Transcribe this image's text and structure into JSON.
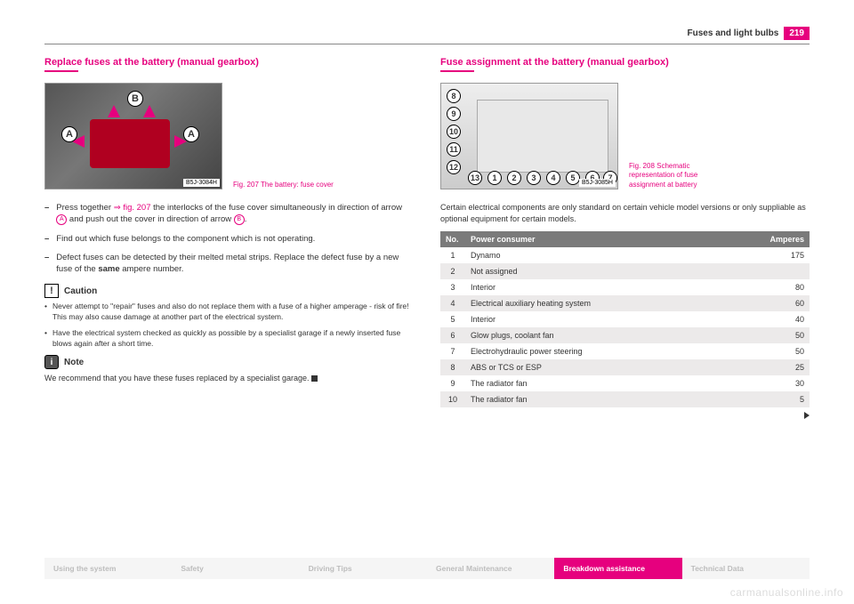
{
  "header": {
    "section_title": "Fuses and light bulbs",
    "page_number": "219"
  },
  "left": {
    "title": "Replace fuses at the battery (manual gearbox)",
    "fig_caption": "Fig. 207   The battery: fuse cover",
    "img_tag": "B5J-3084H",
    "badge_A": "A",
    "badge_B": "B",
    "steps": [
      "Press together ⇒ fig. 207 the interlocks of the fuse cover simultaneously in direction of arrow  A  and push out the cover in direction of arrow  B .",
      "Find out which fuse belongs to the component which is not operating.",
      "Defect fuses can be detected by their melted metal strips. Replace the defect fuse by a new fuse of the same ampere number."
    ],
    "caution_label": "Caution",
    "caution_items": [
      "Never attempt to \"repair\" fuses and also do not replace them with a fuse of a higher amperage - risk of fire! This may also cause damage at another part of the electrical system.",
      "Have the electrical system checked as quickly as possible by a specialist garage if a newly inserted fuse blows again after a short time."
    ],
    "note_label": "Note",
    "note_text": "We recommend that you have these fuses replaced by a specialist garage."
  },
  "right": {
    "title": "Fuse assignment at the battery (manual gearbox)",
    "fig_caption": "Fig. 208   Schematic representation of fuse assignment at battery",
    "img_tag": "B5J-3085H",
    "intro": "Certain electrical components are only standard on certain vehicle model versions or only suppliable as optional equipment for certain models.",
    "table": {
      "head_no": "No.",
      "head_consumer": "Power consumer",
      "head_amp": "Amperes",
      "rows": [
        {
          "n": "1",
          "c": "Dynamo",
          "a": "175"
        },
        {
          "n": "2",
          "c": "Not assigned",
          "a": ""
        },
        {
          "n": "3",
          "c": "Interior",
          "a": "80"
        },
        {
          "n": "4",
          "c": "Electrical auxiliary heating system",
          "a": "60"
        },
        {
          "n": "5",
          "c": "Interior",
          "a": "40"
        },
        {
          "n": "6",
          "c": "Glow plugs, coolant fan",
          "a": "50"
        },
        {
          "n": "7",
          "c": "Electrohydraulic power steering",
          "a": "50"
        },
        {
          "n": "8",
          "c": "ABS or TCS or ESP",
          "a": "25"
        },
        {
          "n": "9",
          "c": "The radiator fan",
          "a": "30"
        },
        {
          "n": "10",
          "c": "The radiator fan",
          "a": "5"
        }
      ]
    },
    "schem_numbers": [
      "8",
      "9",
      "10",
      "11",
      "12",
      "13",
      "1",
      "2",
      "3",
      "4",
      "5",
      "6",
      "7"
    ]
  },
  "nav": {
    "items": [
      "Using the system",
      "Safety",
      "Driving Tips",
      "General Maintenance",
      "Breakdown assistance",
      "Technical Data"
    ],
    "active_index": 4
  },
  "watermark": "carmanualsonline.info"
}
